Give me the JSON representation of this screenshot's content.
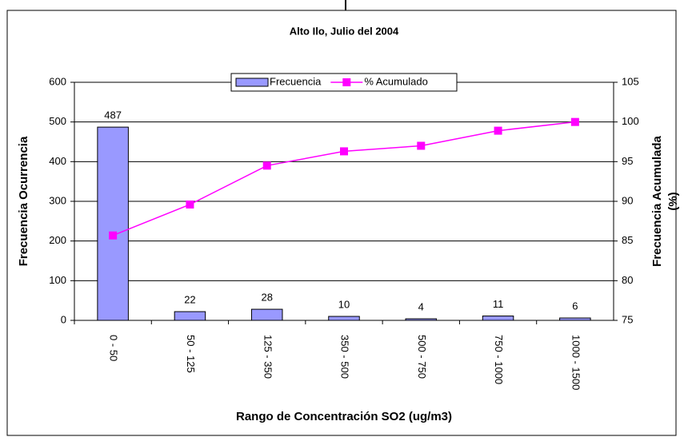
{
  "chart_data": {
    "type": "bar",
    "title": "Alto Ilo, Julio del 2004",
    "xlabel": "Rango de Concentración SO2 (ug/m3)",
    "ylabel": "Frecuencia Ocurrencia",
    "y2label": [
      "Frecuencia Acumulada",
      "(%)"
    ],
    "categories": [
      "0 - 50",
      "50 - 125",
      "125 - 350",
      "350 - 500",
      "500 - 750",
      "750 - 1000",
      "1000 - 1500"
    ],
    "series": [
      {
        "name": "Frecuencia",
        "type": "bar",
        "color": "#9999ff",
        "values": [
          487,
          22,
          28,
          10,
          4,
          11,
          6
        ]
      },
      {
        "name": "% Acumulado",
        "type": "line",
        "axis": "y2",
        "color": "#ff00ff",
        "values": [
          85.7,
          89.6,
          94.5,
          96.3,
          97.0,
          98.9,
          100
        ]
      }
    ],
    "ylim": [
      0,
      600
    ],
    "yticks": [
      0,
      100,
      200,
      300,
      400,
      500,
      600
    ],
    "y2lim": [
      75,
      105
    ],
    "y2ticks": [
      75,
      80,
      85,
      90,
      95,
      100,
      105
    ],
    "grid": true,
    "legend": "top"
  }
}
